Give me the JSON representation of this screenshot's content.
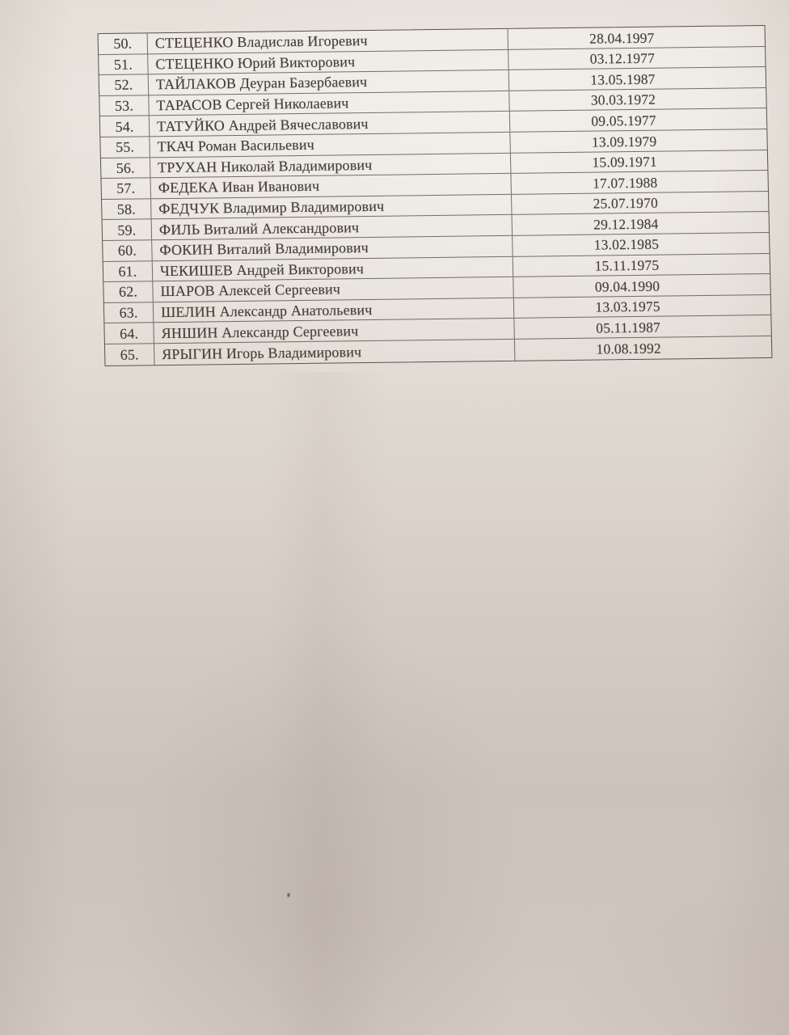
{
  "table": {
    "rows": [
      {
        "num": "50.",
        "name": "СТЕЦЕНКО Владислав Игоревич",
        "date": "28.04.1997"
      },
      {
        "num": "51.",
        "name": "СТЕЦЕНКО Юрий Викторович",
        "date": "03.12.1977"
      },
      {
        "num": "52.",
        "name": "ТАЙЛАКОВ Деуран Базербаевич",
        "date": "13.05.1987"
      },
      {
        "num": "53.",
        "name": "ТАРАСОВ Сергей Николаевич",
        "date": "30.03.1972"
      },
      {
        "num": "54.",
        "name": "ТАТУЙКО Андрей Вячеславович",
        "date": "09.05.1977"
      },
      {
        "num": "55.",
        "name": "ТКАЧ Роман Васильевич",
        "date": "13.09.1979"
      },
      {
        "num": "56.",
        "name": "ТРУХАН Николай Владимирович",
        "date": "15.09.1971"
      },
      {
        "num": "57.",
        "name": "ФЕДЕКА Иван Иванович",
        "date": "17.07.1988"
      },
      {
        "num": "58.",
        "name": "ФЕДЧУК Владимир Владимирович",
        "date": "25.07.1970"
      },
      {
        "num": "59.",
        "name": "ФИЛЬ Виталий Александрович",
        "date": "29.12.1984"
      },
      {
        "num": "60.",
        "name": "ФОКИН Виталий Владимирович",
        "date": "13.02.1985"
      },
      {
        "num": "61.",
        "name": "ЧЕКИШЕВ Андрей Викторович",
        "date": "15.11.1975"
      },
      {
        "num": "62.",
        "name": "ШАРОВ Алексей Сергеевич",
        "date": "09.04.1990"
      },
      {
        "num": "63.",
        "name": "ШЕЛИН Александр Анатольевич",
        "date": "13.03.1975"
      },
      {
        "num": "64.",
        "name": "ЯНШИН Александр Сергеевич",
        "date": "05.11.1987"
      },
      {
        "num": "65.",
        "name": "ЯРЫГИН Игорь Владимирович",
        "date": "10.08.1992"
      }
    ]
  },
  "colors": {
    "paper_top": "#e8e3dc",
    "paper_bottom": "#cdc3bc",
    "ink": "#443e37",
    "table_line": "#44403a"
  }
}
